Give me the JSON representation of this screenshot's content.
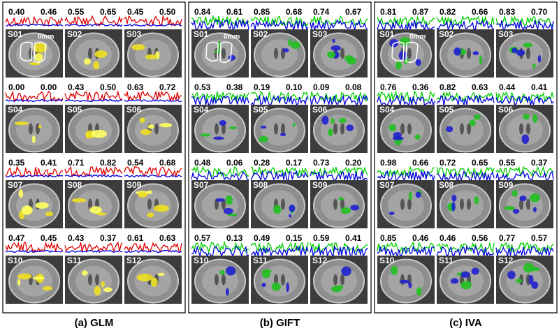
{
  "panels": [
    {
      "caption": "(a) GLM",
      "roi_label": "0mm",
      "subjects": [
        {
          "label": "S01",
          "values": [
            "0.40",
            "0.46"
          ]
        },
        {
          "label": "S02",
          "values": [
            "0.55",
            "0.65"
          ]
        },
        {
          "label": "S03",
          "values": [
            "0.45",
            "0.50"
          ]
        },
        {
          "label": "S04",
          "values": [
            "0.00",
            "0.00"
          ]
        },
        {
          "label": "S05",
          "values": [
            "0.43",
            "0.50"
          ]
        },
        {
          "label": "S06",
          "values": [
            "0.63",
            "0.72"
          ]
        },
        {
          "label": "S07",
          "values": [
            "0.35",
            "0.41"
          ]
        },
        {
          "label": "S08",
          "values": [
            "0.71",
            "0.82"
          ]
        },
        {
          "label": "S09",
          "values": [
            "0.54",
            "0.68"
          ]
        },
        {
          "label": "S10",
          "values": [
            "0.47",
            "0.45"
          ]
        },
        {
          "label": "S11",
          "values": [
            "0.43",
            "0.37"
          ]
        },
        {
          "label": "S12",
          "values": [
            "0.61",
            "0.63"
          ]
        }
      ]
    },
    {
      "caption": "(b) GIFT",
      "roi_label": "0mm",
      "subjects": [
        {
          "label": "S01",
          "values": [
            "0.84",
            "0.61"
          ]
        },
        {
          "label": "S02",
          "values": [
            "0.85",
            "0.68"
          ]
        },
        {
          "label": "S03",
          "values": [
            "0.74",
            "0.67"
          ]
        },
        {
          "label": "S04",
          "values": [
            "0.53",
            "0.38"
          ]
        },
        {
          "label": "S05",
          "values": [
            "0.19",
            "0.10"
          ]
        },
        {
          "label": "S06",
          "values": [
            "0.09",
            "0.08"
          ]
        },
        {
          "label": "S07",
          "values": [
            "0.48",
            "0.06"
          ]
        },
        {
          "label": "S08",
          "values": [
            "0.28",
            "0.17"
          ]
        },
        {
          "label": "S09",
          "values": [
            "0.73",
            "0.20"
          ]
        },
        {
          "label": "S10",
          "values": [
            "0.57",
            "0.13"
          ]
        },
        {
          "label": "S11",
          "values": [
            "0.49",
            "0.15"
          ]
        },
        {
          "label": "S12",
          "values": [
            "0.59",
            "0.41"
          ]
        }
      ]
    },
    {
      "caption": "(c) IVA",
      "roi_label": "0mm",
      "subjects": [
        {
          "label": "S01",
          "values": [
            "0.81",
            "0.87"
          ]
        },
        {
          "label": "S02",
          "values": [
            "0.82",
            "0.66"
          ]
        },
        {
          "label": "S03",
          "values": [
            "0.83",
            "0.70"
          ]
        },
        {
          "label": "S04",
          "values": [
            "0.76",
            "0.36"
          ]
        },
        {
          "label": "S05",
          "values": [
            "0.82",
            "0.63"
          ]
        },
        {
          "label": "S06",
          "values": [
            "0.44",
            "0.41"
          ]
        },
        {
          "label": "S07",
          "values": [
            "0.98",
            "0.66"
          ]
        },
        {
          "label": "S08",
          "values": [
            "0.72",
            "0.65"
          ]
        },
        {
          "label": "S09",
          "values": [
            "0.55",
            "0.37"
          ]
        },
        {
          "label": "S10",
          "values": [
            "0.85",
            "0.46"
          ]
        },
        {
          "label": "S11",
          "values": [
            "0.46",
            "0.56"
          ]
        },
        {
          "label": "S12",
          "values": [
            "0.77",
            "0.57"
          ]
        }
      ]
    }
  ]
}
